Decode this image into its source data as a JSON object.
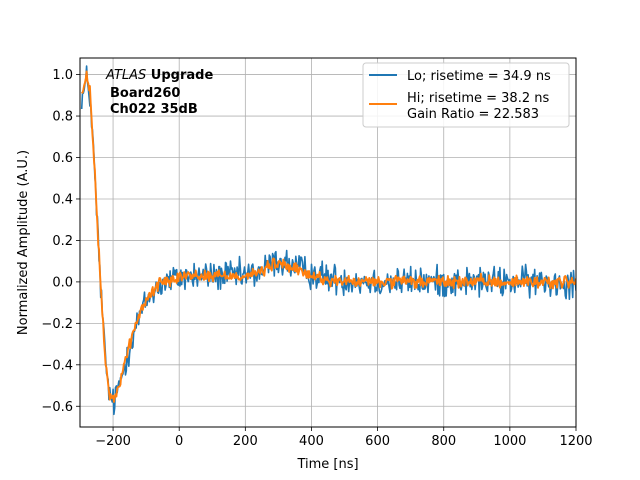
{
  "chart_data": {
    "type": "line",
    "title": "",
    "xlabel": "Time [ns]",
    "ylabel": "Normalized Amplitude (A.U.)",
    "xlim": [
      -300,
      1200
    ],
    "ylim": [
      -0.7,
      1.08
    ],
    "xticks": [
      -200,
      0,
      200,
      400,
      600,
      800,
      1000,
      1200
    ],
    "yticks": [
      -0.6,
      -0.4,
      -0.2,
      0.0,
      0.2,
      0.4,
      0.6,
      0.8,
      1.0
    ],
    "xtick_labels": [
      "−200",
      "0",
      "200",
      "400",
      "600",
      "800",
      "1000",
      "1200"
    ],
    "ytick_labels": [
      "−0.6",
      "−0.4",
      "−0.2",
      "0.0",
      "0.2",
      "0.4",
      "0.6",
      "0.8",
      "1.0"
    ],
    "grid": true,
    "legend_position": "top-right",
    "annotation": {
      "line1_italic": "ATLAS",
      "line1_bold": " Upgrade",
      "line2": "Board260",
      "line3": "Ch022 35dB"
    },
    "series": [
      {
        "name": "Lo; risetime = 34.9 ns",
        "color": "#1f77b4",
        "noise": 0.045,
        "x": [
          -290,
          -280,
          -270,
          -260,
          -250,
          -240,
          -230,
          -220,
          -210,
          -200,
          -190,
          -180,
          -170,
          -160,
          -150,
          -140,
          -130,
          -120,
          -110,
          -100,
          -80,
          -60,
          -40,
          -20,
          0,
          50,
          100,
          150,
          200,
          250,
          280,
          300,
          320,
          350,
          400,
          450,
          500,
          600,
          700,
          800,
          900,
          1000,
          1100,
          1200
        ],
        "y": [
          0.9,
          0.98,
          0.9,
          0.65,
          0.35,
          0.05,
          -0.22,
          -0.43,
          -0.55,
          -0.59,
          -0.55,
          -0.49,
          -0.43,
          -0.37,
          -0.31,
          -0.26,
          -0.21,
          -0.17,
          -0.13,
          -0.1,
          -0.05,
          -0.02,
          0.0,
          0.01,
          0.02,
          0.03,
          0.03,
          0.03,
          0.03,
          0.05,
          0.09,
          0.1,
          0.09,
          0.07,
          0.04,
          0.02,
          0.01,
          0.0,
          0.0,
          0.0,
          0.0,
          0.0,
          0.0,
          0.0
        ]
      },
      {
        "name": "Hi; risetime = 38.2 ns",
        "name2": " Gain Ratio = 22.583",
        "color": "#ff7f0e",
        "noise": 0.018,
        "x": [
          -290,
          -280,
          -270,
          -260,
          -250,
          -240,
          -230,
          -220,
          -210,
          -200,
          -190,
          -180,
          -170,
          -160,
          -150,
          -140,
          -130,
          -120,
          -110,
          -100,
          -80,
          -60,
          -40,
          -20,
          0,
          50,
          100,
          150,
          200,
          250,
          280,
          300,
          320,
          350,
          400,
          450,
          500,
          600,
          700,
          800,
          900,
          1000,
          1100,
          1200
        ],
        "y": [
          0.92,
          0.99,
          0.92,
          0.66,
          0.36,
          0.05,
          -0.22,
          -0.43,
          -0.55,
          -0.58,
          -0.54,
          -0.48,
          -0.42,
          -0.36,
          -0.3,
          -0.25,
          -0.2,
          -0.16,
          -0.12,
          -0.09,
          -0.04,
          -0.01,
          0.01,
          0.02,
          0.03,
          0.03,
          0.03,
          0.03,
          0.03,
          0.05,
          0.08,
          0.09,
          0.08,
          0.06,
          0.03,
          0.01,
          0.0,
          0.0,
          0.0,
          0.0,
          0.0,
          0.0,
          0.0,
          0.0
        ]
      }
    ]
  }
}
